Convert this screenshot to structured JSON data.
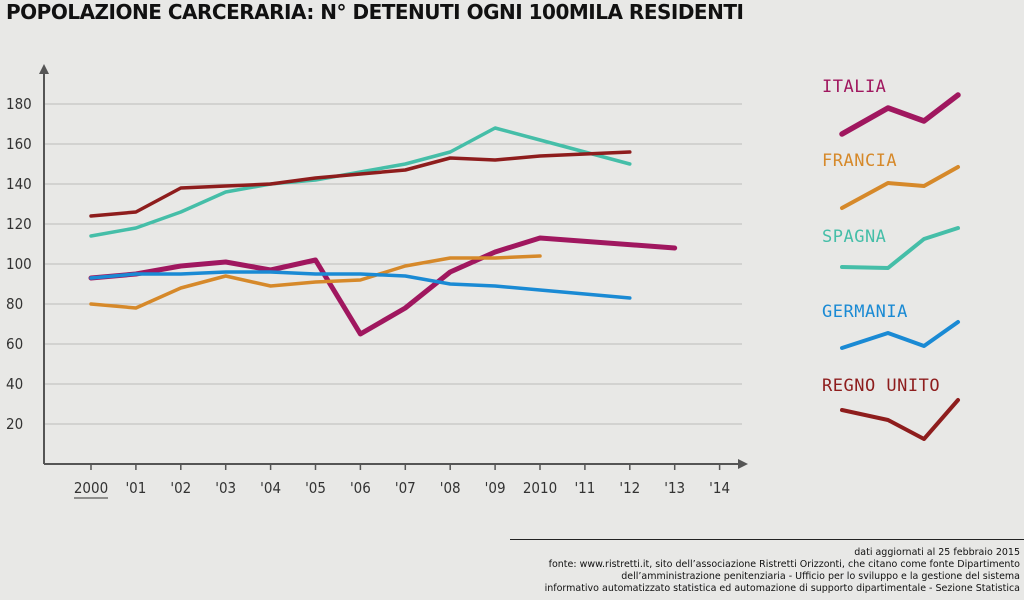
{
  "chart_data": {
    "type": "line",
    "title": "POPOLAZIONE CARCERARIA: N° DETENUTI OGNI 100MILA RESIDENTI",
    "xlabel": "",
    "ylabel": "",
    "x": [
      2000,
      2001,
      2002,
      2003,
      2004,
      2005,
      2006,
      2007,
      2008,
      2009,
      2010,
      2011,
      2012,
      2013,
      2014
    ],
    "x_tick_labels": [
      "2000",
      "'01",
      "'02",
      "'03",
      "'04",
      "'05",
      "'06",
      "'07",
      "'08",
      "'09",
      "2010",
      "'11",
      "'12",
      "'13",
      "'14"
    ],
    "y_ticks": [
      20,
      40,
      60,
      80,
      100,
      120,
      140,
      160,
      180
    ],
    "ylim": [
      0,
      195
    ],
    "xlim": [
      1999,
      2014.5
    ],
    "grid": true,
    "series": [
      {
        "name": "ITALIA",
        "color": "#a0175f",
        "points": [
          [
            2000,
            93
          ],
          [
            2001,
            95
          ],
          [
            2002,
            99
          ],
          [
            2003,
            101
          ],
          [
            2004,
            97
          ],
          [
            2005,
            102
          ],
          [
            2006,
            65
          ],
          [
            2007,
            78
          ],
          [
            2008,
            96
          ],
          [
            2009,
            106
          ],
          [
            2010,
            113
          ],
          [
            2013,
            108
          ]
        ]
      },
      {
        "name": "FRANCIA",
        "color": "#d6892a",
        "points": [
          [
            2000,
            80
          ],
          [
            2001,
            78
          ],
          [
            2002,
            88
          ],
          [
            2003,
            94
          ],
          [
            2004,
            89
          ],
          [
            2005,
            91
          ],
          [
            2006,
            92
          ],
          [
            2007,
            99
          ],
          [
            2008,
            103
          ],
          [
            2009,
            103
          ],
          [
            2010,
            104
          ]
        ]
      },
      {
        "name": "SPAGNA",
        "color": "#45bea8",
        "points": [
          [
            2000,
            114
          ],
          [
            2001,
            118
          ],
          [
            2002,
            126
          ],
          [
            2003,
            136
          ],
          [
            2004,
            140
          ],
          [
            2005,
            142
          ],
          [
            2006,
            146
          ],
          [
            2007,
            150
          ],
          [
            2008,
            156
          ],
          [
            2009,
            168
          ],
          [
            2010,
            162
          ],
          [
            2012,
            150
          ]
        ]
      },
      {
        "name": "GERMANIA",
        "color": "#1a8ad4",
        "points": [
          [
            2000,
            93
          ],
          [
            2001,
            95
          ],
          [
            2002,
            95
          ],
          [
            2003,
            96
          ],
          [
            2004,
            96
          ],
          [
            2005,
            95
          ],
          [
            2006,
            95
          ],
          [
            2007,
            94
          ],
          [
            2008,
            90
          ],
          [
            2009,
            89
          ],
          [
            2010,
            87
          ],
          [
            2012,
            83
          ]
        ]
      },
      {
        "name": "REGNO UNITO",
        "color": "#8e1d1d",
        "points": [
          [
            2000,
            124
          ],
          [
            2001,
            126
          ],
          [
            2002,
            138
          ],
          [
            2003,
            139
          ],
          [
            2004,
            140
          ],
          [
            2005,
            143
          ],
          [
            2006,
            145
          ],
          [
            2007,
            147
          ],
          [
            2008,
            153
          ],
          [
            2009,
            152
          ],
          [
            2010,
            154
          ],
          [
            2012,
            156
          ]
        ]
      }
    ],
    "legend_position": "right"
  },
  "footnote": {
    "lines": [
      "dati aggiornati al 25 febbraio 2015",
      "fonte: www.ristretti.it, sito dell’associazione Ristretti Orizzonti, che citano come fonte Dipartimento",
      "dell’amministrazione penitenziaria - Ufficio per lo sviluppo e la gestione del sistema",
      "informativo automatizzato statistica ed automazione di supporto dipartimentale - Sezione Statistica"
    ]
  }
}
